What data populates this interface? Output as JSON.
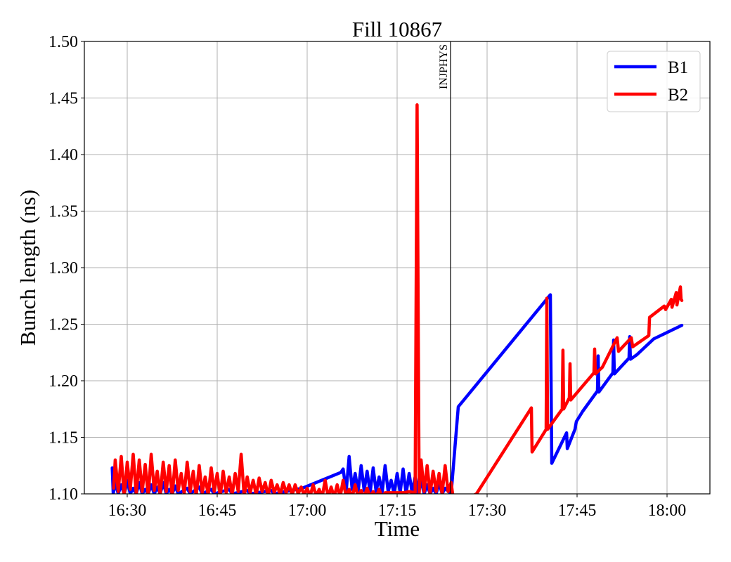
{
  "chart_data": {
    "type": "line",
    "title": "Fill 10867",
    "xlabel": "Time",
    "ylabel": "Bunch length (ns)",
    "xlim": [
      "16:22:51",
      "18:07:09"
    ],
    "ylim": [
      1.1,
      1.5
    ],
    "xticks": [
      {
        "value": "16:30:00",
        "label": "16:30"
      },
      {
        "value": "16:45:00",
        "label": "16:45"
      },
      {
        "value": "17:00:00",
        "label": "17:00"
      },
      {
        "value": "17:15:00",
        "label": "17:15"
      },
      {
        "value": "17:30:00",
        "label": "17:30"
      },
      {
        "value": "17:45:00",
        "label": "17:45"
      },
      {
        "value": "18:00:00",
        "label": "18:00"
      }
    ],
    "yticks": [
      "1.10",
      "1.15",
      "1.20",
      "1.25",
      "1.30",
      "1.35",
      "1.40",
      "1.45",
      "1.50"
    ],
    "grid": true,
    "legend_position": "top-right",
    "annotations": [
      {
        "type": "vline",
        "x": "17:23:54",
        "label": "INJPHYS",
        "color": "#000000"
      }
    ],
    "series": [
      {
        "name": "B1",
        "color": "#0000ff",
        "points": [
          [
            "16:27:30",
            1.123
          ],
          [
            "16:27:40",
            1.1
          ],
          [
            "16:28:00",
            1.11
          ],
          [
            "16:28:30",
            1.1
          ],
          [
            "16:29:00",
            1.108
          ],
          [
            "16:29:30",
            1.1
          ],
          [
            "16:30:00",
            1.112
          ],
          [
            "16:30:30",
            1.1
          ],
          [
            "16:31:00",
            1.105
          ],
          [
            "16:31:30",
            1.1
          ],
          [
            "16:32:00",
            1.11
          ],
          [
            "16:32:30",
            1.1
          ],
          [
            "16:33:00",
            1.104
          ],
          [
            "16:33:30",
            1.1
          ],
          [
            "16:34:00",
            1.108
          ],
          [
            "16:34:30",
            1.1
          ],
          [
            "16:35:00",
            1.106
          ],
          [
            "16:35:30",
            1.1
          ],
          [
            "16:36:00",
            1.11
          ],
          [
            "16:36:30",
            1.1
          ],
          [
            "16:37:00",
            1.104
          ],
          [
            "16:37:30",
            1.1
          ],
          [
            "16:38:00",
            1.107
          ],
          [
            "16:38:30",
            1.1
          ],
          [
            "16:40:00",
            1.105
          ],
          [
            "16:40:30",
            1.1
          ],
          [
            "16:42:00",
            1.106
          ],
          [
            "16:42:30",
            1.1
          ],
          [
            "16:44:00",
            1.104
          ],
          [
            "16:44:30",
            1.1
          ],
          [
            "16:47:00",
            1.104
          ],
          [
            "16:47:30",
            1.1
          ],
          [
            "16:50:00",
            1.103
          ],
          [
            "16:50:30",
            1.1
          ],
          [
            "16:54:00",
            1.103
          ],
          [
            "16:54:30",
            1.1
          ],
          [
            "16:59:11",
            1.105
          ],
          [
            "17:05:38",
            1.119
          ],
          [
            "17:06:00",
            1.122
          ],
          [
            "17:06:30",
            1.102
          ],
          [
            "17:07:00",
            1.133
          ],
          [
            "17:07:30",
            1.104
          ],
          [
            "17:08:00",
            1.118
          ],
          [
            "17:08:30",
            1.102
          ],
          [
            "17:09:00",
            1.125
          ],
          [
            "17:09:30",
            1.103
          ],
          [
            "17:10:00",
            1.12
          ],
          [
            "17:10:30",
            1.101
          ],
          [
            "17:11:00",
            1.123
          ],
          [
            "17:11:30",
            1.102
          ],
          [
            "17:12:00",
            1.115
          ],
          [
            "17:12:30",
            1.101
          ],
          [
            "17:13:00",
            1.125
          ],
          [
            "17:13:30",
            1.102
          ],
          [
            "17:14:00",
            1.112
          ],
          [
            "17:14:30",
            1.1
          ],
          [
            "17:15:00",
            1.118
          ],
          [
            "17:15:30",
            1.101
          ],
          [
            "17:16:00",
            1.122
          ],
          [
            "17:16:30",
            1.1
          ],
          [
            "17:17:00",
            1.118
          ],
          [
            "17:17:30",
            1.101
          ],
          [
            "17:18:00",
            1.115
          ],
          [
            "17:18:30",
            1.1
          ],
          [
            "17:19:00",
            1.112
          ],
          [
            "17:19:30",
            1.1
          ],
          [
            "17:20:00",
            1.108
          ],
          [
            "17:20:30",
            1.1
          ],
          [
            "17:21:00",
            1.105
          ],
          [
            "17:21:30",
            1.1
          ],
          [
            "17:22:00",
            1.11
          ],
          [
            "17:22:30",
            1.1
          ],
          [
            "17:23:00",
            1.105
          ],
          [
            "17:24:00",
            1.1
          ],
          [
            "17:25:12",
            1.177
          ],
          [
            "17:40:33",
            1.276
          ],
          [
            "17:40:47",
            1.127
          ],
          [
            "17:43:15",
            1.154
          ],
          [
            "17:43:22",
            1.14
          ],
          [
            "17:44:39",
            1.157
          ],
          [
            "17:44:53",
            1.164
          ],
          [
            "17:45:56",
            1.173
          ],
          [
            "17:48:24",
            1.191
          ],
          [
            "17:48:31",
            1.222
          ],
          [
            "17:48:38",
            1.19
          ],
          [
            "17:50:59",
            1.207
          ],
          [
            "17:51:06",
            1.236
          ],
          [
            "17:51:13",
            1.206
          ],
          [
            "17:53:40",
            1.22
          ],
          [
            "17:53:47",
            1.239
          ],
          [
            "17:53:54",
            1.219
          ],
          [
            "17:54:58",
            1.223
          ],
          [
            "17:57:47",
            1.237
          ],
          [
            "18:02:28",
            1.249
          ]
        ]
      },
      {
        "name": "B2",
        "color": "#ff0000",
        "points": [
          [
            "16:27:45",
            1.105
          ],
          [
            "16:28:00",
            1.13
          ],
          [
            "16:28:30",
            1.102
          ],
          [
            "16:29:00",
            1.133
          ],
          [
            "16:29:30",
            1.098
          ],
          [
            "16:30:00",
            1.128
          ],
          [
            "16:30:30",
            1.104
          ],
          [
            "16:31:00",
            1.135
          ],
          [
            "16:31:30",
            1.1
          ],
          [
            "16:32:00",
            1.13
          ],
          [
            "16:32:30",
            1.102
          ],
          [
            "16:33:00",
            1.126
          ],
          [
            "16:33:30",
            1.098
          ],
          [
            "16:34:00",
            1.135
          ],
          [
            "16:34:30",
            1.103
          ],
          [
            "16:35:00",
            1.12
          ],
          [
            "16:35:30",
            1.099
          ],
          [
            "16:36:00",
            1.128
          ],
          [
            "16:36:30",
            1.102
          ],
          [
            "16:37:00",
            1.125
          ],
          [
            "16:37:30",
            1.098
          ],
          [
            "16:38:00",
            1.13
          ],
          [
            "16:38:30",
            1.103
          ],
          [
            "16:39:00",
            1.118
          ],
          [
            "16:39:30",
            1.1
          ],
          [
            "16:40:00",
            1.128
          ],
          [
            "16:40:30",
            1.102
          ],
          [
            "16:41:00",
            1.12
          ],
          [
            "16:41:30",
            1.098
          ],
          [
            "16:42:00",
            1.125
          ],
          [
            "16:42:30",
            1.101
          ],
          [
            "16:43:00",
            1.115
          ],
          [
            "16:43:30",
            1.099
          ],
          [
            "16:44:00",
            1.123
          ],
          [
            "16:44:30",
            1.102
          ],
          [
            "16:45:00",
            1.118
          ],
          [
            "16:45:30",
            1.098
          ],
          [
            "16:46:00",
            1.12
          ],
          [
            "16:46:30",
            1.101
          ],
          [
            "16:47:00",
            1.115
          ],
          [
            "16:47:30",
            1.099
          ],
          [
            "16:48:00",
            1.118
          ],
          [
            "16:48:30",
            1.102
          ],
          [
            "16:49:00",
            1.135
          ],
          [
            "16:49:30",
            1.098
          ],
          [
            "16:50:00",
            1.115
          ],
          [
            "16:50:30",
            1.101
          ],
          [
            "16:51:00",
            1.112
          ],
          [
            "16:51:30",
            1.099
          ],
          [
            "16:52:00",
            1.114
          ],
          [
            "16:52:30",
            1.102
          ],
          [
            "16:53:00",
            1.11
          ],
          [
            "16:53:30",
            1.098
          ],
          [
            "16:54:00",
            1.112
          ],
          [
            "16:54:30",
            1.101
          ],
          [
            "16:55:00",
            1.108
          ],
          [
            "16:55:30",
            1.099
          ],
          [
            "16:56:00",
            1.11
          ],
          [
            "16:56:30",
            1.101
          ],
          [
            "16:57:00",
            1.108
          ],
          [
            "16:57:30",
            1.099
          ],
          [
            "16:58:00",
            1.108
          ],
          [
            "16:58:30",
            1.1
          ],
          [
            "16:59:00",
            1.106
          ],
          [
            "16:59:30",
            1.099
          ],
          [
            "17:00:00",
            1.105
          ],
          [
            "17:00:30",
            1.098
          ],
          [
            "17:01:00",
            1.108
          ],
          [
            "17:01:30",
            1.098
          ],
          [
            "17:02:00",
            1.104
          ],
          [
            "17:02:30",
            1.097
          ],
          [
            "17:03:00",
            1.112
          ],
          [
            "17:03:30",
            1.097
          ],
          [
            "17:04:00",
            1.106
          ],
          [
            "17:04:30",
            1.097
          ],
          [
            "17:05:00",
            1.108
          ],
          [
            "17:05:30",
            1.097
          ],
          [
            "17:06:00",
            1.112
          ],
          [
            "17:06:30",
            1.097
          ],
          [
            "17:07:00",
            1.104
          ],
          [
            "17:07:30",
            1.097
          ],
          [
            "17:08:00",
            1.108
          ],
          [
            "17:08:30",
            1.097
          ],
          [
            "17:09:00",
            1.103
          ],
          [
            "17:09:30",
            1.097
          ],
          [
            "17:10:00",
            1.105
          ],
          [
            "17:10:30",
            1.097
          ],
          [
            "17:11:00",
            1.102
          ],
          [
            "17:11:30",
            1.097
          ],
          [
            "17:12:00",
            1.104
          ],
          [
            "17:12:30",
            1.097
          ],
          [
            "17:13:00",
            1.101
          ],
          [
            "17:14:00",
            1.101
          ],
          [
            "17:15:00",
            1.101
          ],
          [
            "17:16:00",
            1.101
          ],
          [
            "17:17:00",
            1.102
          ],
          [
            "17:18:00",
            1.101
          ],
          [
            "17:18:20",
            1.444
          ],
          [
            "17:18:40",
            1.1
          ],
          [
            "17:19:00",
            1.13
          ],
          [
            "17:19:30",
            1.102
          ],
          [
            "17:20:00",
            1.125
          ],
          [
            "17:20:30",
            1.1
          ],
          [
            "17:21:00",
            1.12
          ],
          [
            "17:21:30",
            1.102
          ],
          [
            "17:22:00",
            1.118
          ],
          [
            "17:22:30",
            1.1
          ],
          [
            "17:23:00",
            1.125
          ],
          [
            "17:23:30",
            1.102
          ],
          [
            "17:24:00",
            1.11
          ],
          [
            "17:24:30",
            1.09
          ],
          [
            "17:28:14",
            1.1
          ],
          [
            "17:37:23",
            1.176
          ],
          [
            "17:37:30",
            1.137
          ],
          [
            "17:39:51",
            1.157
          ],
          [
            "17:39:58",
            1.273
          ],
          [
            "17:40:05",
            1.157
          ],
          [
            "17:42:32",
            1.175
          ],
          [
            "17:42:39",
            1.227
          ],
          [
            "17:42:46",
            1.175
          ],
          [
            "17:43:43",
            1.185
          ],
          [
            "17:43:50",
            1.215
          ],
          [
            "17:43:57",
            1.183
          ],
          [
            "17:47:49",
            1.207
          ],
          [
            "17:47:56",
            1.228
          ],
          [
            "17:48:03",
            1.206
          ],
          [
            "17:49:13",
            1.212
          ],
          [
            "17:51:41",
            1.238
          ],
          [
            "17:51:55",
            1.226
          ],
          [
            "17:54:02",
            1.238
          ],
          [
            "17:54:16",
            1.23
          ],
          [
            "17:56:58",
            1.24
          ],
          [
            "17:57:05",
            1.256
          ],
          [
            "17:59:32",
            1.266
          ],
          [
            "17:59:46",
            1.263
          ],
          [
            "18:00:43",
            1.272
          ],
          [
            "18:00:50",
            1.265
          ],
          [
            "18:01:32",
            1.278
          ],
          [
            "18:01:39",
            1.267
          ],
          [
            "18:02:14",
            1.283
          ],
          [
            "18:02:21",
            1.272
          ],
          [
            "18:02:28",
            1.271
          ]
        ]
      }
    ]
  }
}
